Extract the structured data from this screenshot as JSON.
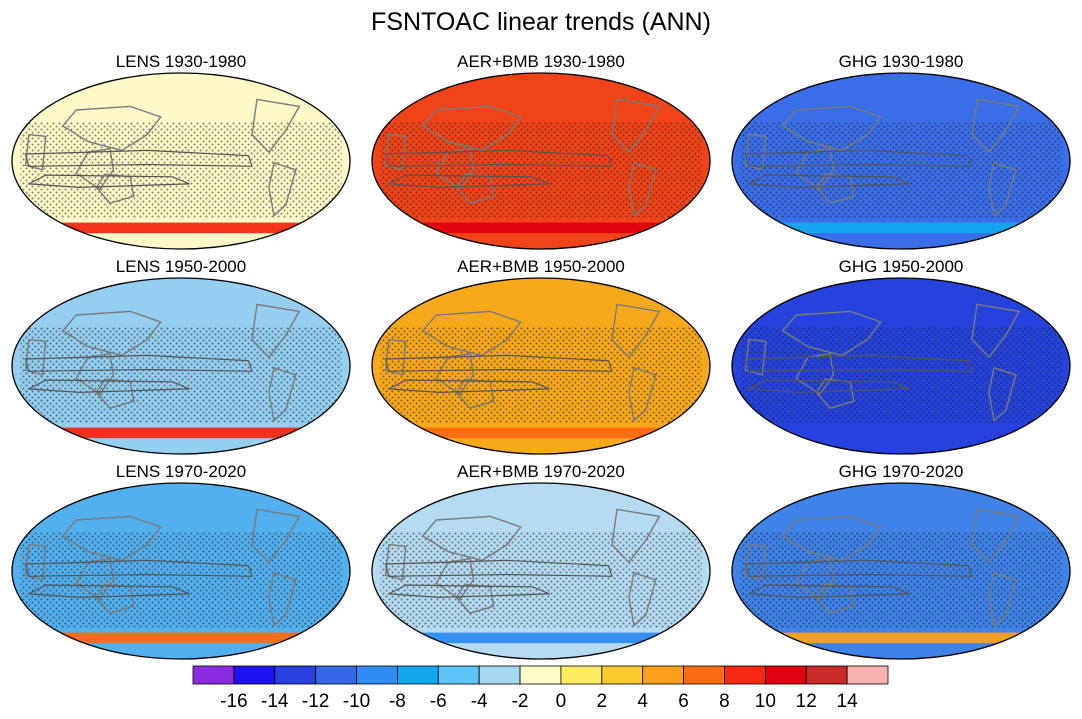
{
  "title": "FSNTOAC linear trends (ANN)",
  "colors": {
    "land_outline": "#7a7a7a",
    "map_border": "#000000",
    "stipple": "#1a1a1a"
  },
  "chart_data": {
    "type": "heatmap",
    "title": "FSNTOAC linear trends (ANN)",
    "projection": "Robinson (global)",
    "rows": [
      "1930-1980",
      "1950-2000",
      "1970-2020"
    ],
    "columns": [
      "LENS",
      "AER+BMB",
      "GHG"
    ],
    "panels": [
      {
        "title": "LENS 1930-1980",
        "dominant_value": 0,
        "dominant_color": "#fff9c8",
        "southern_ocean_band": 8,
        "stippled": true
      },
      {
        "title": "AER+BMB 1930-1980",
        "dominant_value": 8,
        "dominant_color": "#f04418",
        "southern_ocean_band": 10,
        "stippled": true
      },
      {
        "title": "GHG 1930-1980",
        "dominant_value": -10,
        "dominant_color": "#3a6ee8",
        "southern_ocean_band": -8,
        "stippled": true
      },
      {
        "title": "LENS 1950-2000",
        "dominant_value": -4,
        "dominant_color": "#94cef0",
        "southern_ocean_band": 8,
        "stippled": true
      },
      {
        "title": "AER+BMB 1950-2000",
        "dominant_value": 4,
        "dominant_color": "#f7a81b",
        "southern_ocean_band": 6,
        "stippled": true
      },
      {
        "title": "GHG 1950-2000",
        "dominant_value": -12,
        "dominant_color": "#2543dc",
        "southern_ocean_band": -14,
        "stippled": true
      },
      {
        "title": "LENS 1970-2020",
        "dominant_value": -6,
        "dominant_color": "#52b0ee",
        "southern_ocean_band": 6,
        "stippled": true
      },
      {
        "title": "AER+BMB 1970-2020",
        "dominant_value": -4,
        "dominant_color": "#b5dbf2",
        "southern_ocean_band": -10,
        "stippled": true
      },
      {
        "title": "GHG 1970-2020",
        "dominant_value": -8,
        "dominant_color": "#3f82e8",
        "southern_ocean_band": 4,
        "stippled": true
      }
    ],
    "colorbar": {
      "levels": [
        "-16",
        "-14",
        "-12",
        "-10",
        "-8",
        "-6",
        "-4",
        "-2",
        "0",
        "2",
        "4",
        "6",
        "8",
        "10",
        "12",
        "14"
      ],
      "colors": [
        "#8a2be2",
        "#1f12f0",
        "#2a3fe0",
        "#3567e6",
        "#2e8cf2",
        "#12a8f0",
        "#5ec3f5",
        "#a6d8f2",
        "#fffcc8",
        "#ffec62",
        "#fcca2c",
        "#fca01c",
        "#fd6a14",
        "#f52814",
        "#e0000e",
        "#c82a2a",
        "#f8b2b2"
      ]
    }
  }
}
